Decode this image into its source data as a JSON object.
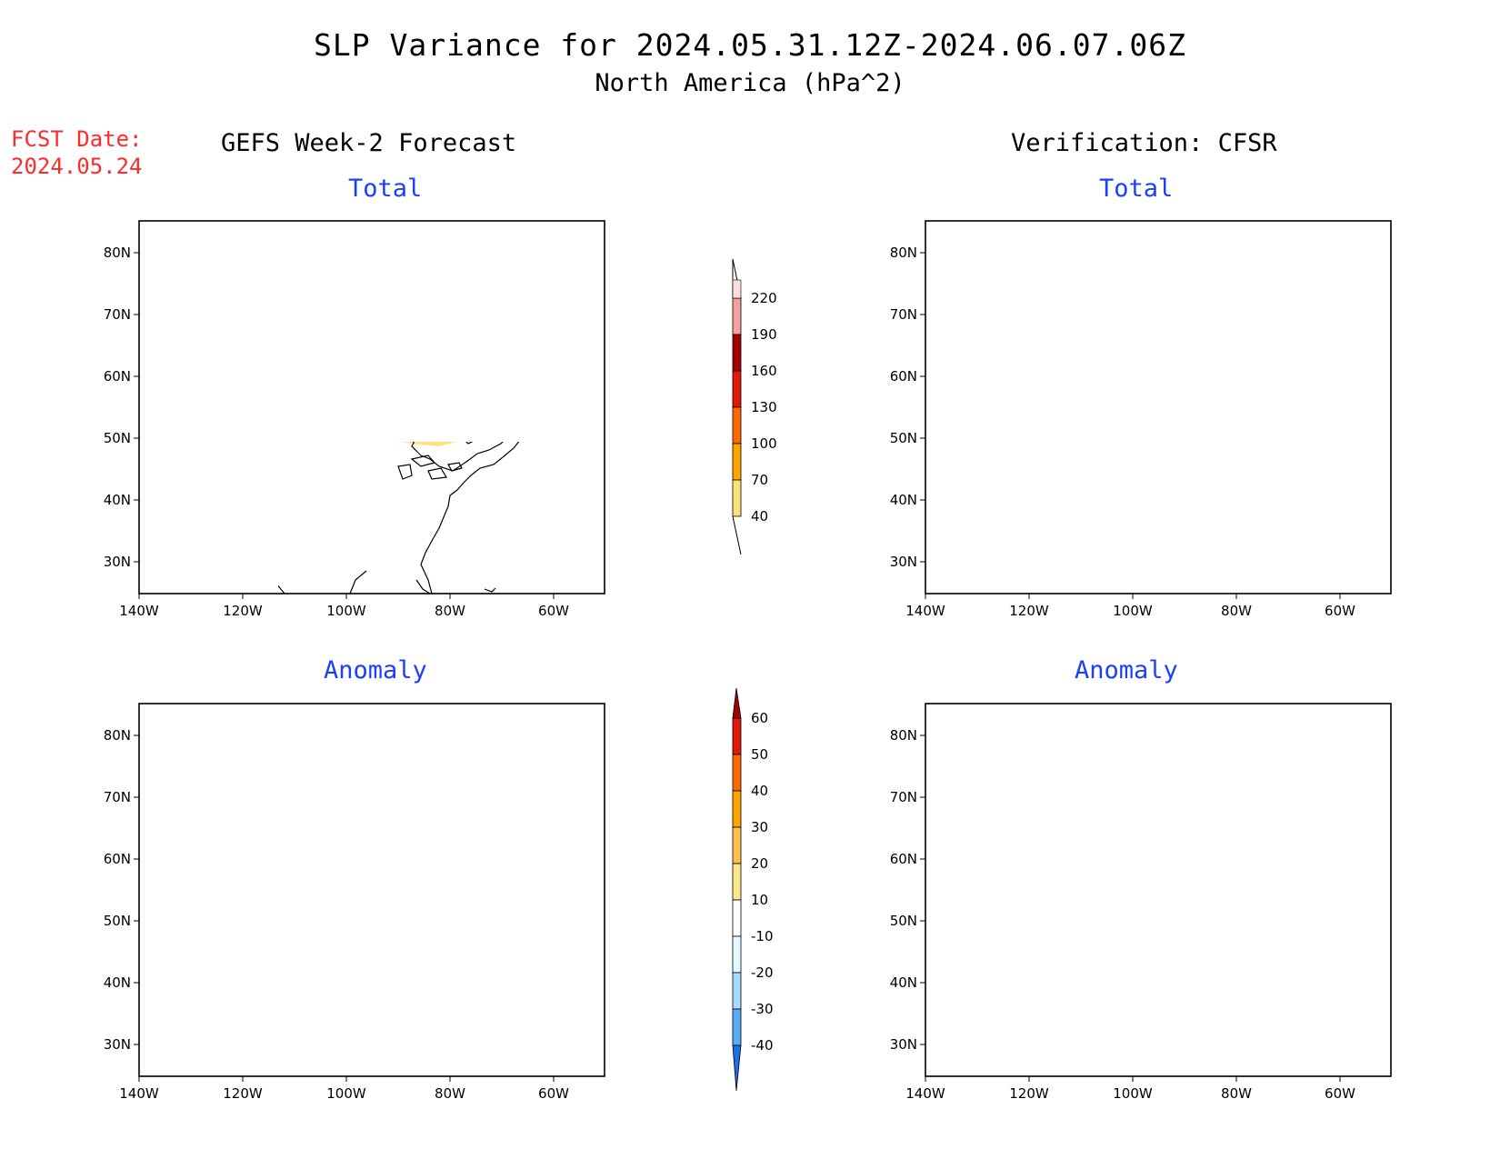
{
  "title": {
    "line1": "SLP Variance for 2024.05.31.12Z-2024.06.07.06Z",
    "line2": "North America (hPa^2)"
  },
  "fcst_date": {
    "label": "FCST Date:",
    "value": "2024.05.24"
  },
  "columns": {
    "left": "GEFS Week-2 Forecast",
    "right": "Verification: CFSR"
  },
  "panels": {
    "top_left": "Total",
    "top_right": "Total",
    "bottom_left": "Anomaly",
    "bottom_right": "Anomaly"
  },
  "axes": {
    "lat_labels": [
      "80N",
      "70N",
      "60N",
      "50N",
      "40N",
      "30N"
    ],
    "lon_labels": [
      "140W",
      "120W",
      "100W",
      "80W",
      "60W"
    ]
  },
  "colorbar_total": {
    "levels": [
      "40",
      "70",
      "100",
      "130",
      "160",
      "190",
      "220"
    ],
    "colors": [
      "#fde27a",
      "#ffa500",
      "#ff6a00",
      "#e01a0a",
      "#a50000",
      "#f4a0a0",
      "#fcdede"
    ]
  },
  "colorbar_anomaly": {
    "levels": [
      "60",
      "50",
      "40",
      "30",
      "20",
      "10",
      "-10",
      "-20",
      "-30",
      "-40"
    ],
    "colors": {
      "above_60": "#a50000",
      "50_60": "#e01a0a",
      "40_50": "#ff6a00",
      "30_40": "#ffa500",
      "20_30": "#fdc04a",
      "10_20": "#fde98c",
      "neutral": "#ffffff",
      "m10_m20": "#e2f9ff",
      "m20_m30": "#a6dcff",
      "m30_m40": "#5aacf5",
      "below_m40": "#1e6ee6"
    }
  }
}
